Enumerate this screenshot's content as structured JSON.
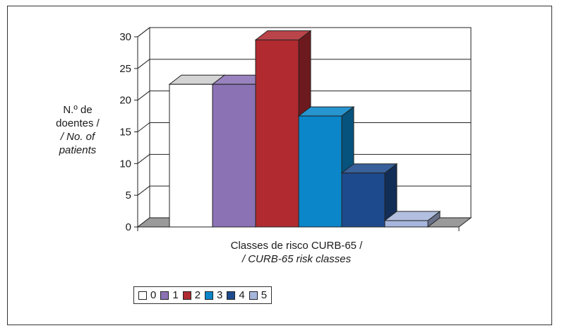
{
  "chart_data": {
    "type": "bar",
    "style": "3d",
    "categories": [
      "0",
      "1",
      "2",
      "3",
      "4",
      "5"
    ],
    "values": [
      22.5,
      22.5,
      29.5,
      17.5,
      8.5,
      1
    ],
    "colors": [
      "#ffffff",
      "#8b72b5",
      "#b02a30",
      "#0a86c9",
      "#1d4a8c",
      "#a7b6dc"
    ],
    "y_ticks": [
      "0",
      "5",
      "10",
      "15",
      "20",
      "25",
      "30"
    ],
    "ylim": [
      0,
      30
    ],
    "grid": true,
    "legend_position": "bottom",
    "ylabel": {
      "line1": "N.º de",
      "line2": "doentes /",
      "line3": "/ No. of",
      "line4": "patients"
    },
    "xlabel": {
      "line1": "Classes de risco CURB-65 /",
      "line2": "/ CURB-65 risk classes"
    },
    "legend": [
      "0",
      "1",
      "2",
      "3",
      "4",
      "5"
    ]
  }
}
